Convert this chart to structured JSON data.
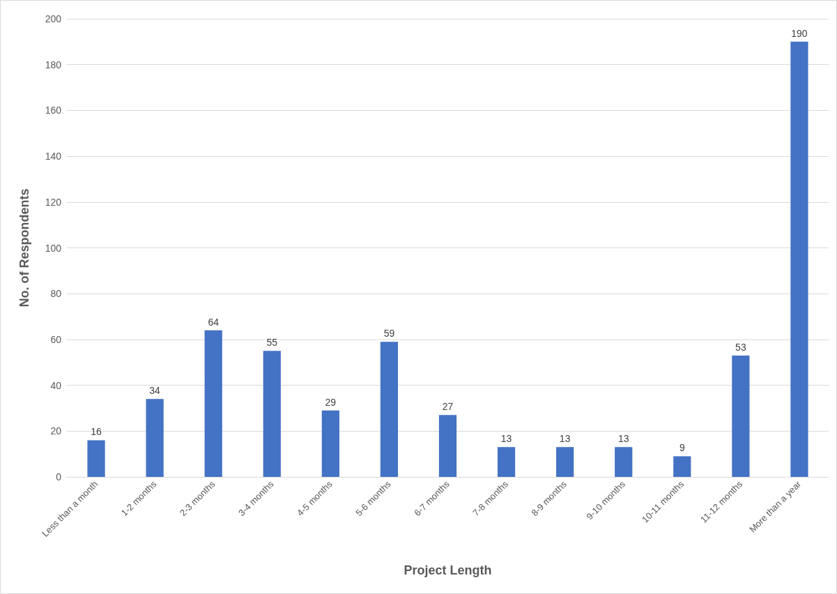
{
  "chart_data": {
    "type": "bar",
    "xlabel": "Project Length",
    "ylabel": "No. of Respondents",
    "categories": [
      "Less than a month",
      "1-2 months",
      "2-3 months",
      "3-4 months",
      "4-5 months",
      "5-6 months",
      "6-7 months",
      "7-8 months",
      "8-9 months",
      "9-10 months",
      "10-11 months",
      "11-12 months",
      "More than a year"
    ],
    "values": [
      16,
      34,
      64,
      55,
      29,
      59,
      27,
      13,
      13,
      13,
      9,
      53,
      190
    ],
    "color": "#4472c4",
    "ylim": [
      0,
      200
    ],
    "yticks": [
      0,
      20,
      40,
      60,
      80,
      100,
      120,
      140,
      160,
      180,
      200
    ],
    "grid": "y",
    "data_labels": true
  }
}
